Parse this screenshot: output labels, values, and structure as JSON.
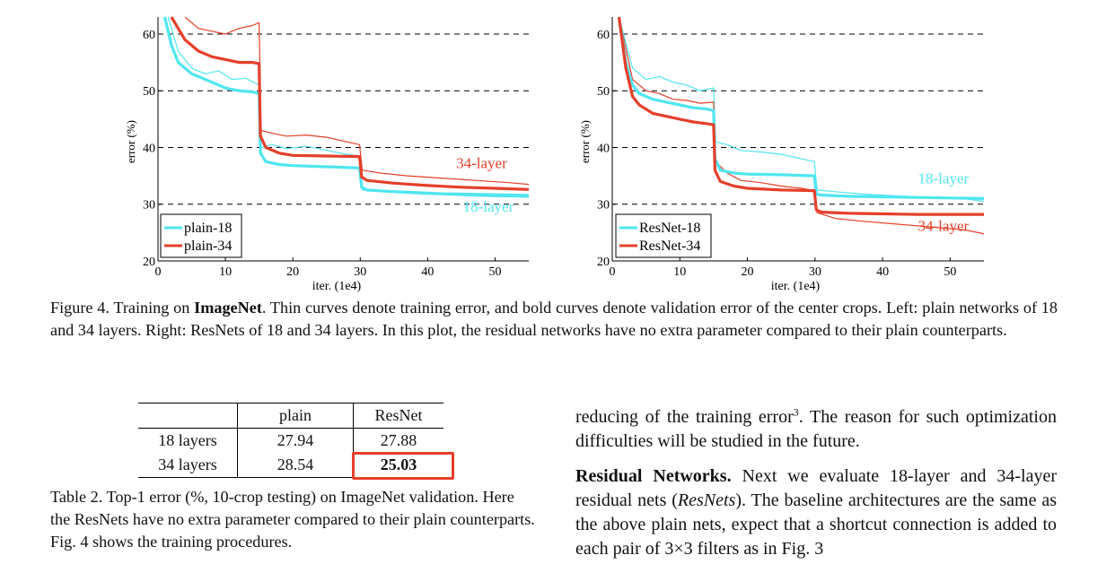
{
  "figure_caption": {
    "label": "Figure 4.",
    "text_before_bold": " Training on ",
    "bold": "ImageNet",
    "text_after_bold": ". Thin curves denote training error, and bold curves denote validation error of the center crops. Left: plain networks of 18 and 34 layers. Right: ResNets of 18 and 34 layers. In this plot, the residual networks have no extra parameter compared to their plain counterparts."
  },
  "colors": {
    "cyan": "#4fe6f0",
    "red": "#e53f2a"
  },
  "chart_data": [
    {
      "type": "line",
      "xlabel": "iter. (1e4)",
      "ylabel": "error (%)",
      "xlim": [
        0,
        55
      ],
      "ylim": [
        20,
        63
      ],
      "xticks": [
        0,
        10,
        20,
        30,
        40,
        50
      ],
      "yticks": [
        20,
        30,
        40,
        50,
        60
      ],
      "grid": "horizontal-dashed",
      "legend_position": "bottom-left",
      "legend": [
        "plain-18",
        "plain-34"
      ],
      "annotations": [
        {
          "text": "34-layer",
          "x": 48,
          "y": 36.4,
          "color": "red"
        },
        {
          "text": "18-layer",
          "x": 49,
          "y": 28.7,
          "color": "cyan"
        }
      ],
      "series": [
        {
          "name": "plain-18",
          "kind": "validation",
          "color": "cyan",
          "x": [
            1,
            2,
            3,
            4,
            5,
            6,
            8,
            10,
            12,
            14,
            15,
            15.2,
            16,
            18,
            20,
            25,
            29.9,
            30.2,
            31,
            35,
            40,
            45,
            50,
            55
          ],
          "y": [
            63,
            58,
            55,
            54,
            53,
            52.5,
            51.5,
            50.5,
            50,
            49.8,
            49.5,
            39,
            37.5,
            37,
            36.8,
            36.6,
            36.4,
            33,
            32.5,
            32.2,
            31.9,
            31.7,
            31.5,
            31.4
          ]
        },
        {
          "name": "plain-34",
          "kind": "validation",
          "color": "red",
          "x": [
            2,
            3,
            4,
            5,
            6,
            8,
            10,
            12,
            14,
            15,
            15.2,
            16,
            18,
            20,
            25,
            29.9,
            30.2,
            31,
            35,
            40,
            45,
            50,
            55
          ],
          "y": [
            63,
            61,
            59,
            58,
            57,
            56,
            55.5,
            55,
            55,
            54.8,
            42,
            40,
            39,
            38.6,
            38.5,
            38.4,
            34.8,
            34.2,
            33.7,
            33.3,
            33,
            32.8,
            32.6
          ]
        },
        {
          "name": "plain-18 train",
          "kind": "training",
          "color": "cyan",
          "x": [
            1.5,
            3,
            5,
            7,
            9,
            11,
            13,
            15,
            15.3,
            17,
            19,
            22,
            25,
            28,
            29.9,
            30.3,
            33,
            37,
            42,
            47,
            52,
            55
          ],
          "y": [
            63,
            57,
            54,
            53,
            53.5,
            52,
            52.2,
            51,
            40,
            40.5,
            39.8,
            40.2,
            39.5,
            38.8,
            38.5,
            32.5,
            32.4,
            32.3,
            32,
            31.9,
            31.8,
            31.7
          ]
        },
        {
          "name": "plain-34 train",
          "kind": "training",
          "color": "red",
          "x": [
            4,
            6,
            8,
            10,
            12,
            14,
            15,
            15.3,
            17,
            19,
            22,
            25,
            28,
            29.9,
            30.3,
            33,
            37,
            42,
            47,
            52,
            55
          ],
          "y": [
            63,
            61,
            60.5,
            60,
            61,
            61.5,
            62,
            43,
            42.5,
            42,
            42.2,
            41.8,
            41,
            40.5,
            36,
            35.5,
            35,
            34.6,
            34.2,
            33.8,
            33.5
          ]
        }
      ]
    },
    {
      "type": "line",
      "xlabel": "iter. (1e4)",
      "ylabel": "error (%)",
      "xlim": [
        0,
        55
      ],
      "ylim": [
        20,
        63
      ],
      "xticks": [
        0,
        10,
        20,
        30,
        40,
        50
      ],
      "yticks": [
        20,
        30,
        40,
        50,
        60
      ],
      "grid": "horizontal-dashed",
      "legend_position": "bottom-left",
      "legend": [
        "ResNet-18",
        "ResNet-34"
      ],
      "annotations": [
        {
          "text": "18-layer",
          "x": 49,
          "y": 33.7,
          "color": "cyan"
        },
        {
          "text": "34-layer",
          "x": 49,
          "y": 25.3,
          "color": "red"
        }
      ],
      "series": [
        {
          "name": "ResNet-18",
          "kind": "validation",
          "color": "cyan",
          "x": [
            1,
            2,
            3,
            4,
            6,
            8,
            10,
            12,
            14,
            15,
            15.2,
            16,
            18,
            20,
            25,
            29.9,
            30.2,
            31,
            35,
            40,
            45,
            50,
            55
          ],
          "y": [
            63,
            55,
            51,
            49.5,
            48.5,
            48,
            47.5,
            47,
            46.8,
            46.5,
            38,
            36,
            35.5,
            35.3,
            35.2,
            35,
            31.8,
            31.6,
            31.4,
            31.3,
            31.2,
            31.1,
            31
          ]
        },
        {
          "name": "ResNet-34",
          "kind": "validation",
          "color": "red",
          "x": [
            1,
            2,
            3,
            4,
            6,
            8,
            10,
            12,
            14,
            15,
            15.2,
            16,
            18,
            20,
            25,
            29.9,
            30.2,
            31,
            35,
            40,
            45,
            50,
            55
          ],
          "y": [
            63,
            54,
            49,
            47.5,
            46,
            45.5,
            45,
            44.5,
            44.2,
            44,
            36,
            34,
            33.2,
            32.8,
            32.5,
            32.4,
            29,
            28.6,
            28.4,
            28.3,
            28.2,
            28.2,
            28.2
          ]
        },
        {
          "name": "ResNet-18 train",
          "kind": "training",
          "color": "cyan",
          "x": [
            1,
            3,
            5,
            7,
            9,
            11,
            13,
            15,
            15.3,
            17,
            19,
            22,
            25,
            28,
            29.9,
            30.3,
            33,
            37,
            42,
            47,
            52,
            55
          ],
          "y": [
            63,
            54,
            52,
            52.5,
            51.5,
            51,
            50,
            50.5,
            41,
            40.5,
            39.5,
            39.2,
            38.8,
            38,
            37.5,
            32.5,
            32.2,
            31.8,
            31.5,
            31.2,
            31,
            30.5
          ]
        },
        {
          "name": "ResNet-34 train",
          "kind": "training",
          "color": "red",
          "x": [
            1,
            3,
            5,
            7,
            9,
            11,
            13,
            15,
            15.3,
            17,
            19,
            22,
            25,
            28,
            29.9,
            30.3,
            33,
            37,
            42,
            47,
            52,
            55
          ],
          "y": [
            63,
            52,
            50,
            49.5,
            48.5,
            48.3,
            47.8,
            48,
            37.5,
            35.5,
            34.2,
            33.8,
            33.2,
            32.8,
            32.4,
            28.5,
            27.5,
            27,
            26.5,
            26,
            25.5,
            24.8
          ]
        }
      ]
    }
  ],
  "table": {
    "headers": [
      "",
      "plain",
      "ResNet"
    ],
    "rows": [
      {
        "label": "18 layers",
        "plain": "27.94",
        "resnet": "27.88"
      },
      {
        "label": "34 layers",
        "plain": "28.54",
        "resnet": "25.03"
      }
    ]
  },
  "table_caption": "Table 2. Top-1 error (%, 10-crop testing) on ImageNet validation. Here the ResNets have no extra parameter compared to their plain counterparts. Fig. 4 shows the training procedures.",
  "body": {
    "p1_before_sup": "reducing of the training error",
    "p1_sup": "3",
    "p1_after_sup": ". The reason for such optimization difficulties will be studied in the future.",
    "p2_heading": "Residual Networks.",
    "p2_before_em": " Next we evaluate 18-layer and 34-layer residual nets (",
    "p2_em": "ResNets",
    "p2_after_em": "). The baseline architectures are the same as the above plain nets, expect that a shortcut connection is added to each pair of 3×3 filters as in Fig. 3"
  }
}
